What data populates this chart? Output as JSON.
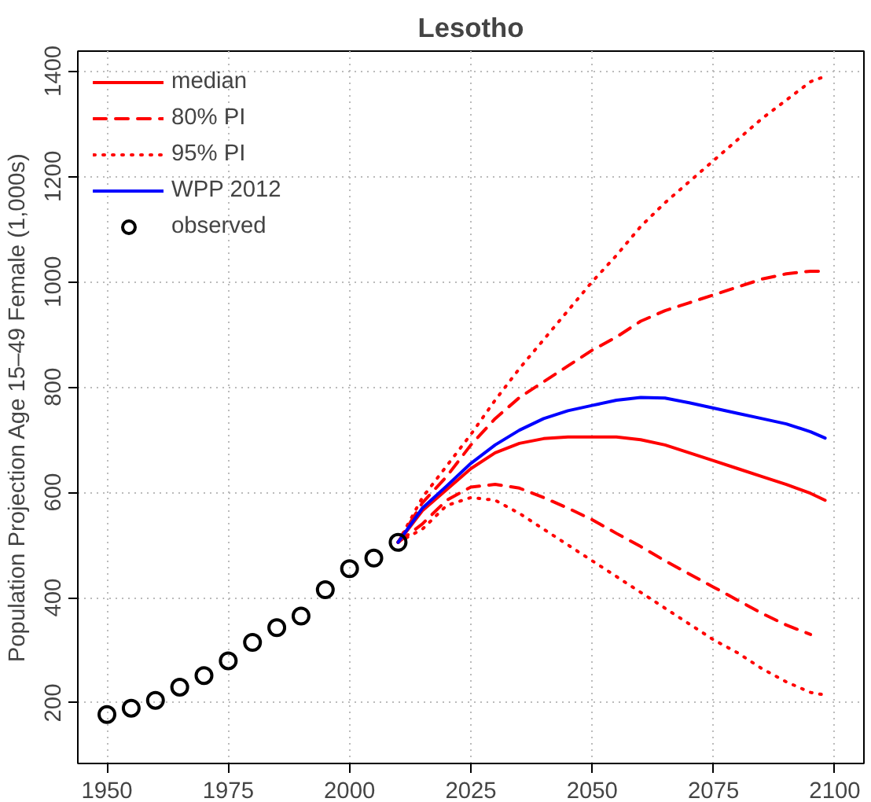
{
  "chart_data": {
    "type": "line",
    "title": "Lesotho",
    "ylabel": "Population Projection Age 15–49 Female (1,000s)",
    "xlim": [
      1944,
      2106
    ],
    "ylim": [
      85,
      1438
    ],
    "xticks": [
      1950,
      1975,
      2000,
      2025,
      2050,
      2075,
      2100
    ],
    "yticks": [
      200,
      400,
      600,
      800,
      1000,
      1200,
      1400
    ],
    "grid": true,
    "legend": "top left",
    "series": [
      {
        "name": "median",
        "color": "#ff0000",
        "line_style": "solid",
        "x": [
          2010,
          2015,
          2020,
          2025,
          2030,
          2035,
          2040,
          2045,
          2050,
          2055,
          2060,
          2065,
          2070,
          2075,
          2080,
          2085,
          2090,
          2095,
          2098
        ],
        "values": [
          505,
          565,
          605,
          645,
          675,
          693,
          702,
          705,
          705,
          705,
          700,
          690,
          675,
          660,
          645,
          630,
          615,
          598,
          585
        ]
      },
      {
        "name": "80% PI",
        "color": "#ff0000",
        "line_style": "dashed",
        "x": [
          2010,
          2015,
          2020,
          2025,
          2030,
          2035,
          2040,
          2045,
          2050,
          2055,
          2060,
          2065,
          2070,
          2075,
          2080,
          2085,
          2090,
          2095,
          2098
        ],
        "values": [
          505,
          580,
          630,
          690,
          740,
          780,
          810,
          840,
          870,
          895,
          925,
          945,
          960,
          975,
          990,
          1005,
          1015,
          1020,
          1020
        ]
      },
      {
        "color": "#ff0000",
        "line_style": "dashed",
        "x": [
          2010,
          2015,
          2020,
          2025,
          2030,
          2035,
          2040,
          2045,
          2050,
          2055,
          2060,
          2065,
          2070,
          2075,
          2080,
          2085,
          2090,
          2095
        ],
        "values": [
          505,
          540,
          585,
          610,
          615,
          608,
          590,
          570,
          548,
          522,
          497,
          470,
          445,
          420,
          395,
          370,
          348,
          330
        ]
      },
      {
        "name": "95% PI",
        "color": "#ff0000",
        "line_style": "dotted",
        "x": [
          2010,
          2015,
          2020,
          2025,
          2030,
          2035,
          2040,
          2045,
          2050,
          2055,
          2060,
          2065,
          2070,
          2075,
          2080,
          2085,
          2090,
          2095,
          2098
        ],
        "values": [
          505,
          590,
          650,
          710,
          775,
          835,
          890,
          945,
          1000,
          1050,
          1105,
          1150,
          1190,
          1230,
          1270,
          1310,
          1345,
          1380,
          1390
        ]
      },
      {
        "color": "#ff0000",
        "line_style": "dotted",
        "x": [
          2010,
          2015,
          2020,
          2025,
          2030,
          2035,
          2040,
          2045,
          2050,
          2055,
          2060,
          2065,
          2070,
          2075,
          2080,
          2085,
          2090,
          2095,
          2098
        ],
        "values": [
          505,
          530,
          575,
          590,
          585,
          560,
          530,
          500,
          470,
          440,
          410,
          380,
          350,
          320,
          295,
          265,
          240,
          220,
          215
        ]
      },
      {
        "name": "WPP 2012",
        "color": "#0000ff",
        "line_style": "solid",
        "x": [
          2010,
          2015,
          2020,
          2025,
          2030,
          2035,
          2040,
          2045,
          2050,
          2055,
          2060,
          2065,
          2070,
          2075,
          2080,
          2085,
          2090,
          2095,
          2098
        ],
        "values": [
          505,
          570,
          612,
          655,
          690,
          718,
          740,
          755,
          765,
          775,
          780,
          779,
          770,
          760,
          750,
          740,
          730,
          715,
          703
        ]
      },
      {
        "name": "observed",
        "type": "scatter",
        "marker": "circle",
        "color": "#000000",
        "x": [
          1950,
          1955,
          1960,
          1965,
          1970,
          1975,
          1980,
          1985,
          1990,
          1995,
          2000,
          2005,
          2010
        ],
        "values": [
          178,
          190,
          205,
          230,
          252,
          280,
          315,
          343,
          365,
          415,
          455,
          475,
          505
        ]
      }
    ]
  }
}
